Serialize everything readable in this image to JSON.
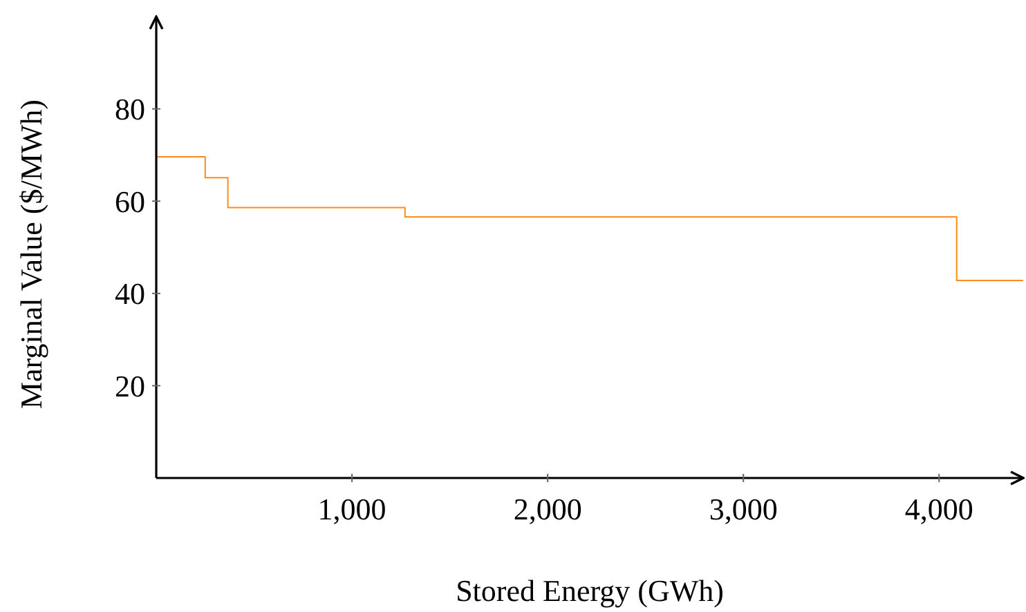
{
  "chart_data": {
    "type": "step",
    "xlabel": "Stored Energy (GWh)",
    "ylabel": "Marginal Value ($/MWh)",
    "x": [
      0,
      250,
      366,
      1271,
      4090,
      4430
    ],
    "series": [
      {
        "color": "#ff8c1a",
        "values": [
          69.6,
          65.1,
          58.6,
          56.6,
          42.8,
          42.8
        ]
      }
    ],
    "xlim": [
      0,
      4430
    ],
    "ylim": [
      0,
      100
    ],
    "xticks": [
      {
        "value": 1000,
        "label": "1,000"
      },
      {
        "value": 2000,
        "label": "2,000"
      },
      {
        "value": 3000,
        "label": "3,000"
      },
      {
        "value": 4000,
        "label": "4,000"
      }
    ],
    "yticks": [
      20,
      40,
      60,
      80
    ],
    "grid": false
  }
}
